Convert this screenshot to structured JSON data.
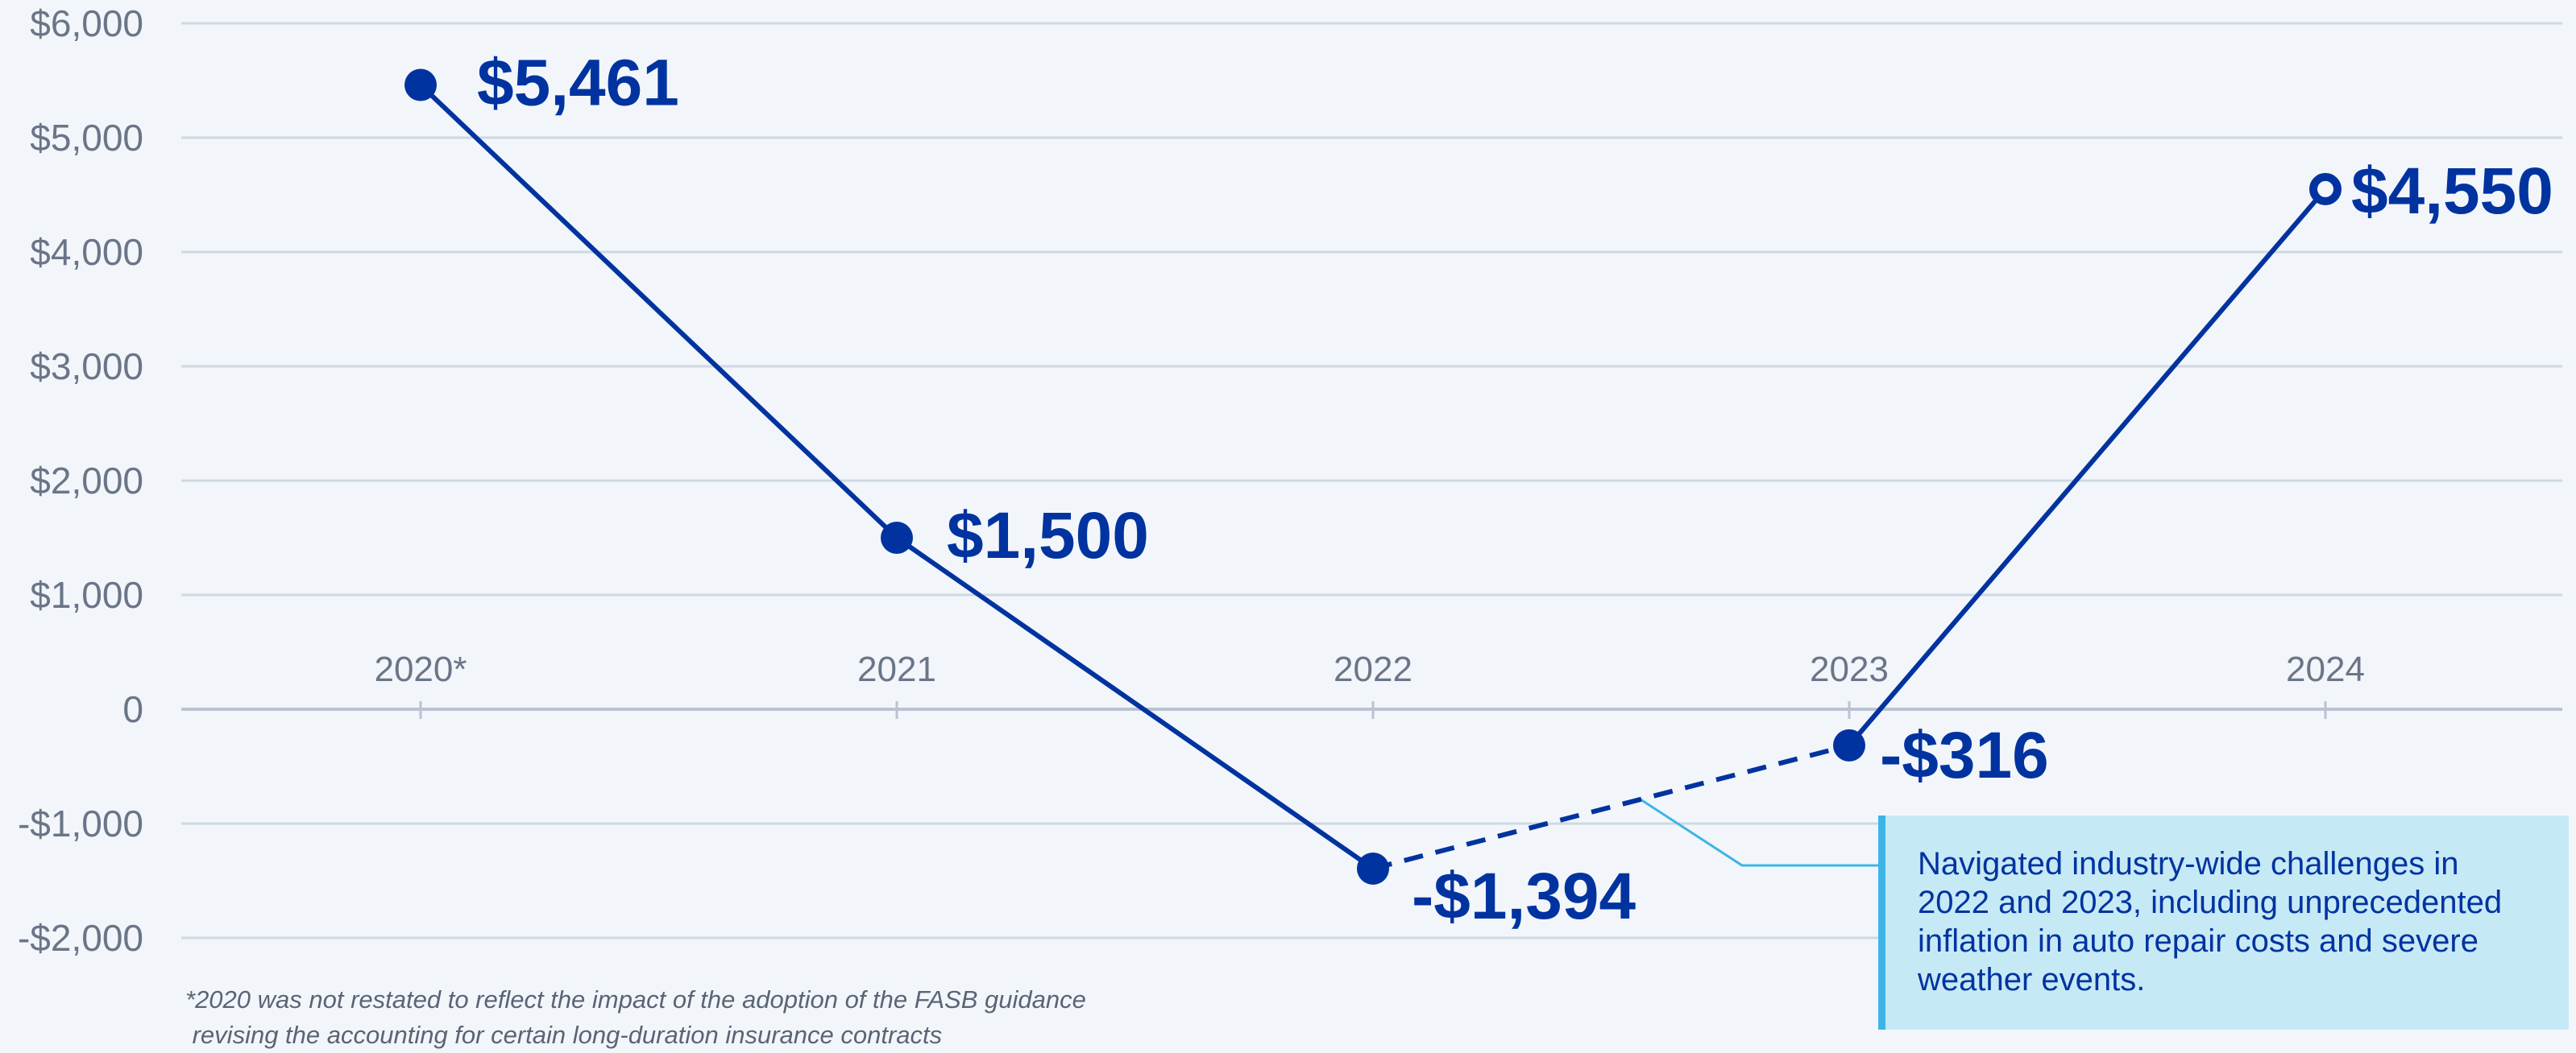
{
  "chart_data": {
    "type": "line",
    "categories": [
      "2020*",
      "2021",
      "2022",
      "2023",
      "2024"
    ],
    "values": [
      5461,
      1500,
      -1394,
      -316,
      4550
    ],
    "data_labels": [
      "$5,461",
      "$1,500",
      "-$1,394",
      "-$316",
      "$4,550"
    ],
    "ylim": [
      -2000,
      6000
    ],
    "yticks": [
      6000,
      5000,
      4000,
      3000,
      2000,
      1000,
      0,
      -1000,
      -2000
    ],
    "ytick_labels": [
      "$6,000",
      "$5,000",
      "$4,000",
      "$3,000",
      "$2,000",
      "$1,000",
      "0",
      "-$1,000",
      "-$2,000"
    ],
    "grid": true,
    "dashed_segment": [
      "2022",
      "2023"
    ],
    "hollow_marker": "2024",
    "colors": {
      "line": "#0033a0",
      "grid": "#cfd8e3",
      "callout_bg": "#c6e9f6",
      "callout_border": "#3db5e6",
      "background": "#f2f6fa"
    },
    "annotation": "Navigated industry-wide challenges in 2022 and 2023, including unprecedented inflation in auto repair costs and severe weather events.",
    "footnote": [
      "*2020 was not restated to reflect the impact of the adoption of the FASB guidance",
      " revising the accounting for certain long-duration insurance contracts"
    ]
  }
}
